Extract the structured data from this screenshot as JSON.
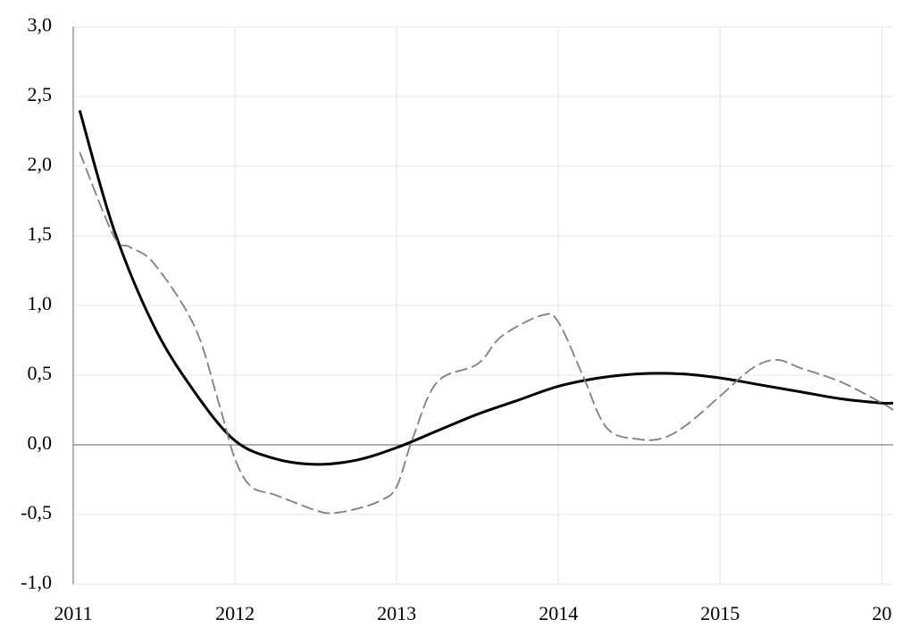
{
  "chart_data": {
    "type": "line",
    "xlim": [
      2011,
      2016.07
    ],
    "xticks": [
      2011,
      2012,
      2013,
      2014,
      2015,
      {
        "value": 2016,
        "label": "20"
      }
    ],
    "ylim": [
      -1,
      3
    ],
    "yticks": [
      {
        "value": -1,
        "label": "-1,0"
      },
      {
        "value": -0.5,
        "label": "-0,5"
      },
      {
        "value": 0,
        "label": "0,0"
      },
      {
        "value": 0.5,
        "label": "0,5"
      },
      {
        "value": 1,
        "label": "1,0"
      },
      {
        "value": 1.5,
        "label": "1,5"
      },
      {
        "value": 2,
        "label": "2,0"
      },
      {
        "value": 2.5,
        "label": "2,5"
      },
      {
        "value": 3,
        "label": "3,0"
      }
    ],
    "grid": true,
    "series": [
      {
        "color": "#000000",
        "dash": false,
        "x": [
          2011.04,
          2011.25,
          2011.5,
          2011.75,
          2012.0,
          2012.25,
          2012.5,
          2012.75,
          2013.0,
          2013.25,
          2013.5,
          2013.75,
          2014.0,
          2014.25,
          2014.5,
          2014.75,
          2015.0,
          2015.25,
          2015.5,
          2015.75,
          2016.0,
          2016.07
        ],
        "values": [
          2.4,
          1.55,
          0.85,
          0.38,
          0.03,
          -0.1,
          -0.14,
          -0.11,
          -0.02,
          0.1,
          0.22,
          0.32,
          0.42,
          0.48,
          0.51,
          0.51,
          0.48,
          0.43,
          0.38,
          0.33,
          0.3,
          0.3
        ]
      },
      {
        "color": "#7f7f7f",
        "dash": true,
        "x": [
          2011.04,
          2011.25,
          2011.35,
          2011.5,
          2011.75,
          2011.9,
          2012.0,
          2012.1,
          2012.25,
          2012.5,
          2012.6,
          2012.75,
          2012.9,
          2013.0,
          2013.1,
          2013.25,
          2013.5,
          2013.65,
          2013.9,
          2014.0,
          2014.15,
          2014.3,
          2014.5,
          2014.65,
          2014.8,
          2015.0,
          2015.2,
          2015.35,
          2015.5,
          2015.75,
          2016.0,
          2016.07
        ],
        "values": [
          2.1,
          1.5,
          1.42,
          1.3,
          0.85,
          0.3,
          -0.1,
          -0.3,
          -0.36,
          -0.47,
          -0.49,
          -0.46,
          -0.4,
          -0.3,
          0.05,
          0.45,
          0.58,
          0.78,
          0.93,
          0.88,
          0.5,
          0.12,
          0.04,
          0.05,
          0.15,
          0.35,
          0.55,
          0.61,
          0.55,
          0.45,
          0.3,
          0.25
        ]
      }
    ]
  }
}
